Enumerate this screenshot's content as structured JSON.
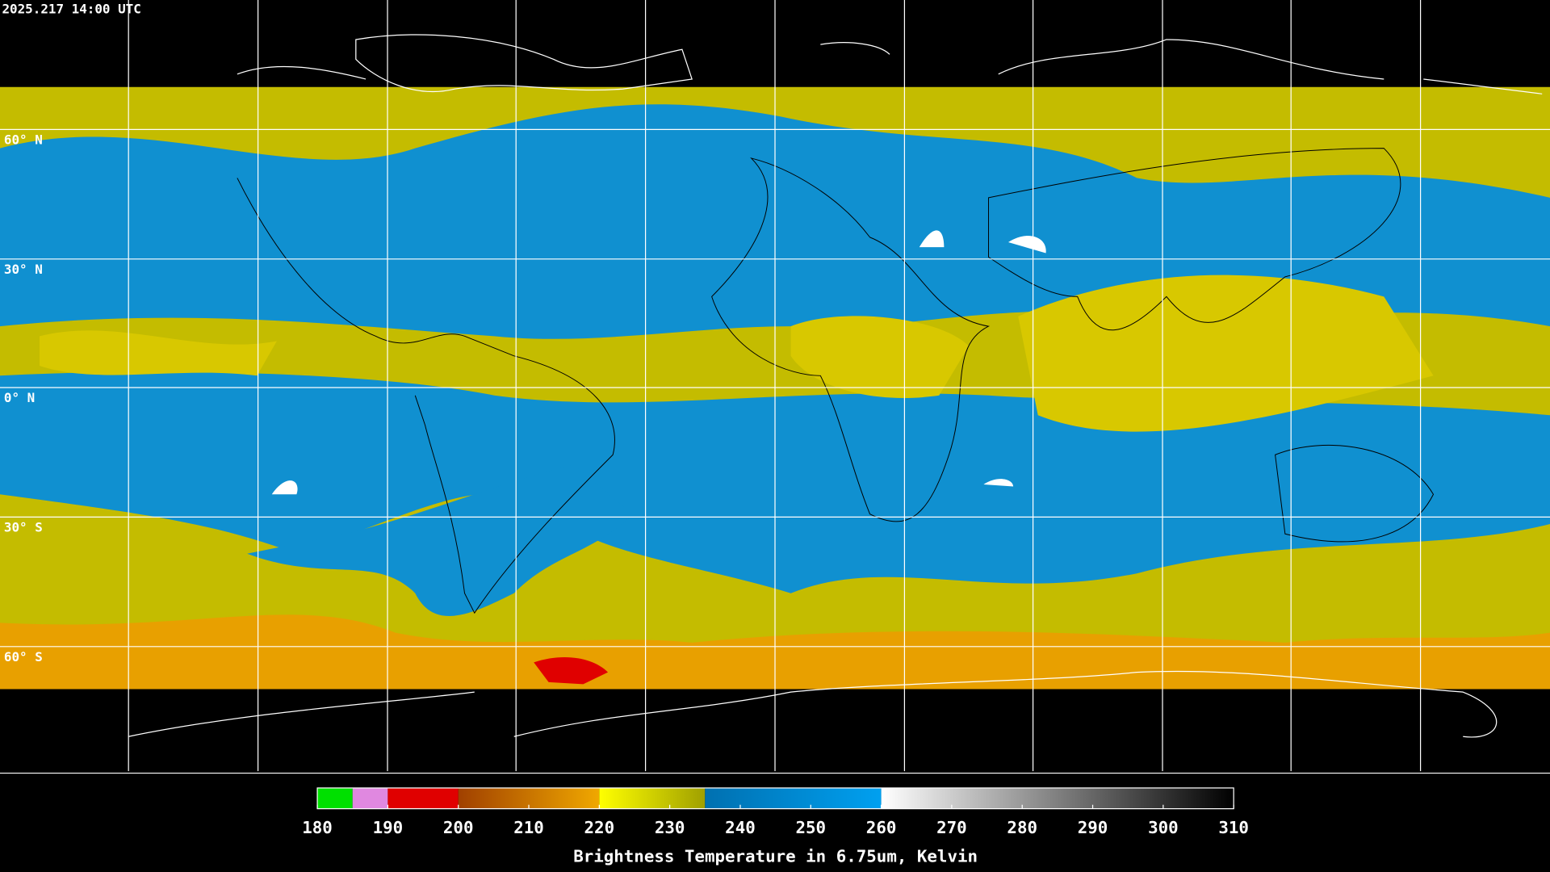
{
  "timestamp": "2025.217 14:00 UTC",
  "latitude_labels": [
    "60° N",
    "30° N",
    "0° N",
    "30° S",
    "60° S"
  ],
  "colorbar": {
    "title": "Brightness Temperature in 6.75um, Kelvin",
    "range": [
      180,
      310
    ],
    "ticks": [
      180,
      190,
      200,
      210,
      220,
      230,
      240,
      250,
      260,
      270,
      280,
      290,
      300,
      310
    ],
    "segments": [
      {
        "from": 180,
        "to": 185,
        "color": "#00e000",
        "color_end": "#00e000"
      },
      {
        "from": 185,
        "to": 190,
        "color": "#e088e0",
        "color_end": "#e088e0"
      },
      {
        "from": 190,
        "to": 200,
        "color": "#e00000",
        "color_end": "#e00000"
      },
      {
        "from": 200,
        "to": 220,
        "color": "#a04000",
        "color_end": "#f0a800"
      },
      {
        "from": 220,
        "to": 235,
        "color": "#ffff00",
        "color_end": "#a0a000"
      },
      {
        "from": 235,
        "to": 260,
        "color": "#0070b0",
        "color_end": "#00a0f0"
      },
      {
        "from": 260,
        "to": 310,
        "color": "#ffffff",
        "color_end": "#000000"
      }
    ]
  }
}
